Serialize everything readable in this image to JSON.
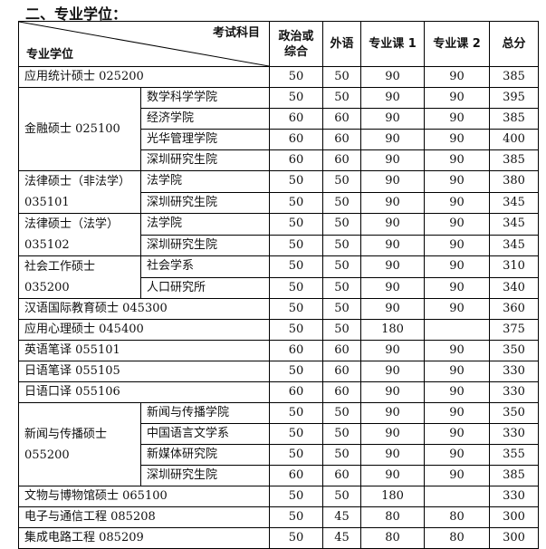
{
  "section_title": "二、专业学位：",
  "header": {
    "subject_label": "考试科目",
    "degree_label": "专业学位",
    "columns": [
      "政治或\n综合",
      "外语",
      "专业课 1",
      "专业课 2",
      "总分"
    ]
  },
  "groups": [
    {
      "label": "应用统计硕士  025200",
      "scores": [
        "50",
        "50",
        "90",
        "90",
        "385"
      ]
    },
    {
      "label": "金融硕士  025100",
      "subs": [
        {
          "dept": "数学科学学院",
          "scores": [
            "50",
            "50",
            "90",
            "90",
            "395"
          ]
        },
        {
          "dept": "经济学院",
          "scores": [
            "60",
            "60",
            "90",
            "90",
            "385"
          ]
        },
        {
          "dept": "光华管理学院",
          "scores": [
            "60",
            "60",
            "90",
            "90",
            "400"
          ]
        },
        {
          "dept": "深圳研究生院",
          "scores": [
            "60",
            "60",
            "90",
            "90",
            "385"
          ]
        }
      ]
    },
    {
      "label": "法律硕士（非法学）\n035101",
      "subs": [
        {
          "dept": "法学院",
          "scores": [
            "50",
            "50",
            "90",
            "90",
            "380"
          ]
        },
        {
          "dept": "深圳研究生院",
          "scores": [
            "50",
            "50",
            "90",
            "90",
            "345"
          ]
        }
      ]
    },
    {
      "label": "法律硕士（法学）\n035102",
      "subs": [
        {
          "dept": "法学院",
          "scores": [
            "50",
            "50",
            "90",
            "90",
            "345"
          ]
        },
        {
          "dept": "深圳研究生院",
          "scores": [
            "50",
            "50",
            "90",
            "90",
            "345"
          ]
        }
      ]
    },
    {
      "label": "社会工作硕士\n035200",
      "subs": [
        {
          "dept": "社会学系",
          "scores": [
            "50",
            "50",
            "90",
            "90",
            "310"
          ]
        },
        {
          "dept": "人口研究所",
          "scores": [
            "50",
            "50",
            "90",
            "90",
            "340"
          ]
        }
      ]
    },
    {
      "label": "汉语国际教育硕士 045300",
      "scores": [
        "50",
        "50",
        "90",
        "90",
        "360"
      ]
    },
    {
      "label": "应用心理硕士  045400",
      "scores": [
        "50",
        "50",
        "180",
        "",
        "375"
      ]
    },
    {
      "label": "英语笔译  055101",
      "scores": [
        "60",
        "60",
        "90",
        "90",
        "350"
      ]
    },
    {
      "label": "日语笔译  055105",
      "scores": [
        "50",
        "60",
        "90",
        "90",
        "330"
      ]
    },
    {
      "label": "日语口译  055106",
      "scores": [
        "60",
        "60",
        "90",
        "90",
        "330"
      ]
    },
    {
      "label": "新闻与传播硕士\n055200",
      "subs": [
        {
          "dept": "新闻与传播学院",
          "scores": [
            "50",
            "50",
            "90",
            "90",
            "350"
          ]
        },
        {
          "dept": "中国语言文学系",
          "scores": [
            "50",
            "50",
            "90",
            "90",
            "330"
          ]
        },
        {
          "dept": "新媒体研究院",
          "scores": [
            "50",
            "50",
            "90",
            "90",
            "355"
          ]
        },
        {
          "dept": "深圳研究生院",
          "scores": [
            "60",
            "60",
            "90",
            "90",
            "385"
          ]
        }
      ]
    },
    {
      "label": "文物与博物馆硕士  065100",
      "scores": [
        "50",
        "50",
        "180",
        "",
        "330"
      ]
    },
    {
      "label": "电子与通信工程  085208",
      "scores": [
        "50",
        "45",
        "80",
        "80",
        "300"
      ]
    },
    {
      "label": "集成电路工程  085209",
      "scores": [
        "50",
        "45",
        "80",
        "80",
        "300"
      ]
    }
  ]
}
